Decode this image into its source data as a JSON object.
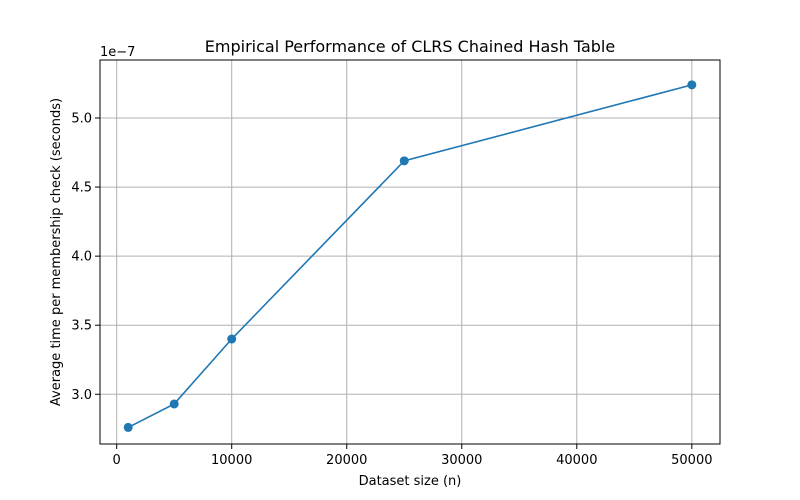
{
  "chart_data": {
    "type": "line",
    "title": "Empirical Performance of CLRS Chained Hash Table",
    "xlabel": "Dataset size (n)",
    "ylabel": "Average time per membership check (seconds)",
    "y_offset_label": "1e−7",
    "x_ticks": [
      0,
      10000,
      20000,
      30000,
      40000,
      50000
    ],
    "y_ticks": [
      3.0,
      3.5,
      4.0,
      4.5,
      5.0
    ],
    "y_tick_labels": [
      "3.0",
      "3.5",
      "4.0",
      "4.5",
      "5.0"
    ],
    "xlim": [
      -1450,
      52450
    ],
    "ylim": [
      2.64,
      5.42
    ],
    "y_scale_exponent": -7,
    "grid": true,
    "colors": {
      "line": "#1f77b4"
    },
    "series": [
      {
        "x": [
          1000,
          5000,
          10000,
          25000,
          50000
        ],
        "y": [
          2.76,
          2.93,
          3.4,
          4.69,
          5.24
        ]
      }
    ]
  }
}
